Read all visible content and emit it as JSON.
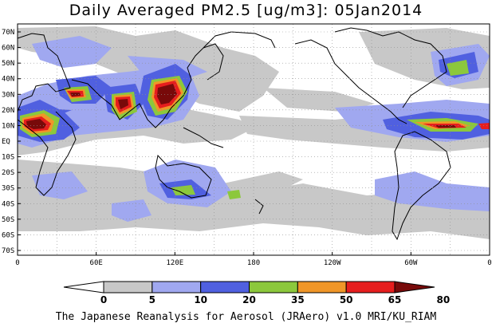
{
  "title": "Daily Averaged PM2.5 [ug/m3]: 05Jan2014",
  "footer": "The Japanese Reanalysis for Aerosol (JRAero) v1.0 MRI/KU_RIAM",
  "map": {
    "lat_labels": [
      "70N",
      "60N",
      "50N",
      "40N",
      "30N",
      "20N",
      "10N",
      "EQ",
      "10S",
      "20S",
      "30S",
      "40S",
      "50S",
      "60S",
      "70S"
    ],
    "lon_labels": [
      "0",
      "60E",
      "120E",
      "180",
      "120W",
      "60W",
      "0"
    ],
    "land_color": "#000000",
    "grid": "dotted"
  },
  "colorbar": {
    "levels": [
      "0",
      "5",
      "10",
      "20",
      "35",
      "50",
      "65",
      "80"
    ],
    "colors": [
      "#ffffff",
      "#c8c8c8",
      "#a0a8f0",
      "#5060e0",
      "#8cc83c",
      "#f09628",
      "#e61e1e",
      "#780a0a"
    ]
  }
}
